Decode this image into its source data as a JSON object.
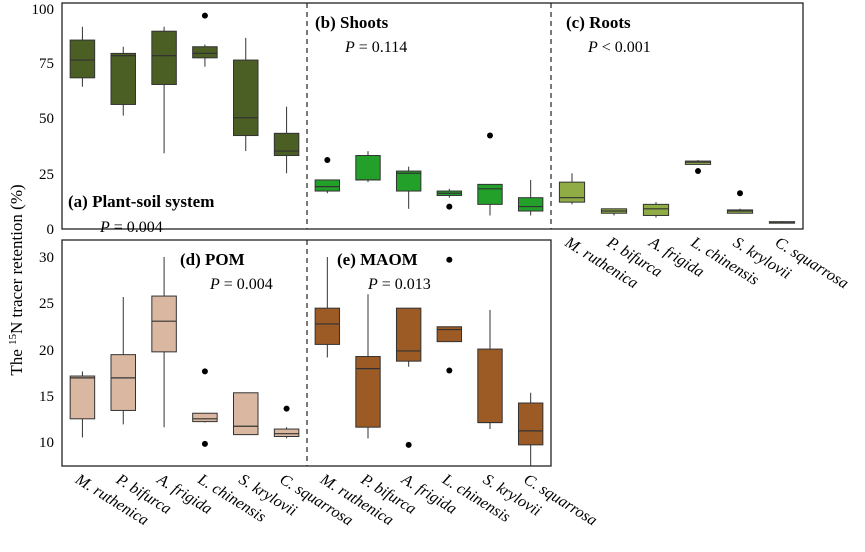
{
  "y_axis_label_prefix": "The ",
  "y_axis_label_sup": "15",
  "y_axis_label_rest": "N tracer retention (%)",
  "species": [
    "M. ruthenica",
    "P. bifurca",
    "A. frigida",
    "L. chinensis",
    "S. krylovii",
    "C. squarrosa"
  ],
  "colors": {
    "plant_soil": "#4b5e23",
    "shoots": "#22a02a",
    "roots": "#8fac45",
    "pom": "#d9b7a0",
    "maom": "#9c5a24",
    "outline": "#333333"
  },
  "chart_data": [
    {
      "type": "box",
      "id": "a",
      "panel": "top",
      "title": "(a) Plant-soil system",
      "p_label": "P",
      "p_value": " = 0.004",
      "ylim": [
        0,
        100
      ],
      "yticks": [
        0,
        25,
        50,
        75,
        100
      ],
      "categories": [
        "M. ruthenica",
        "P. bifurca",
        "A. frigida",
        "L. chinensis",
        "S. krylovii",
        "C. squarrosa"
      ],
      "boxes": [
        {
          "min": 65,
          "q1": 69,
          "median": 77,
          "q3": 86,
          "max": 92,
          "outliers": []
        },
        {
          "min": 52,
          "q1": 57,
          "median": 79,
          "q3": 80,
          "max": 83,
          "outliers": []
        },
        {
          "min": 35,
          "q1": 66,
          "median": 79,
          "q3": 90,
          "max": 92,
          "outliers": []
        },
        {
          "min": 74,
          "q1": 78,
          "median": 80,
          "q3": 83,
          "max": 84,
          "outliers": [
            97
          ]
        },
        {
          "min": 36,
          "q1": 43,
          "median": 51,
          "q3": 77,
          "max": 87,
          "outliers": []
        },
        {
          "min": 26,
          "q1": 34,
          "median": 36,
          "q3": 44,
          "max": 56,
          "outliers": []
        }
      ]
    },
    {
      "type": "box",
      "id": "b",
      "panel": "top",
      "title": "(b) Shoots",
      "p_label": "P",
      "p_value": " = 0.114",
      "ylim": [
        0,
        100
      ],
      "categories": [
        "M. ruthenica",
        "P. bifurca",
        "A. frigida",
        "L. chinensis",
        "S. krylovii",
        "C. squarrosa"
      ],
      "boxes": [
        {
          "min": 17,
          "q1": 18,
          "median": 20,
          "q3": 23,
          "max": 23,
          "outliers": [
            32
          ]
        },
        {
          "min": 22,
          "q1": 23,
          "median": 23,
          "q3": 34,
          "max": 36,
          "outliers": []
        },
        {
          "min": 10,
          "q1": 18,
          "median": 26,
          "q3": 27,
          "max": 29,
          "outliers": []
        },
        {
          "min": 15,
          "q1": 16,
          "median": 17,
          "q3": 18,
          "max": 19,
          "outliers": [
            11
          ]
        },
        {
          "min": 7,
          "q1": 12,
          "median": 19,
          "q3": 21,
          "max": 21,
          "outliers": [
            43
          ]
        },
        {
          "min": 7,
          "q1": 9,
          "median": 11,
          "q3": 15,
          "max": 23,
          "outliers": []
        }
      ]
    },
    {
      "type": "box",
      "id": "c",
      "panel": "top",
      "title": "(c) Roots",
      "p_label": "P",
      "p_value": " < 0.001",
      "ylim": [
        0,
        100
      ],
      "categories": [
        "M. ruthenica",
        "P. bifurca",
        "A. frigida",
        "L. chinensis",
        "S. krylovii",
        "C. squarrosa"
      ],
      "boxes": [
        {
          "min": 12,
          "q1": 13,
          "median": 15,
          "q3": 22,
          "max": 26,
          "outliers": []
        },
        {
          "min": 7,
          "q1": 8,
          "median": 9,
          "q3": 10,
          "max": 10,
          "outliers": []
        },
        {
          "min": 6,
          "q1": 7,
          "median": 10,
          "q3": 12,
          "max": 13,
          "outliers": []
        },
        {
          "min": 30,
          "q1": 30,
          "median": 31,
          "q3": 31.5,
          "max": 32,
          "outliers": [
            27
          ]
        },
        {
          "min": 8,
          "q1": 8,
          "median": 9,
          "q3": 9.5,
          "max": 10,
          "outliers": [
            17
          ]
        },
        {
          "min": 3.5,
          "q1": 3.8,
          "median": 4,
          "q3": 4.2,
          "max": 4.5,
          "outliers": []
        }
      ]
    },
    {
      "type": "box",
      "id": "d",
      "panel": "bottom",
      "title": "(d) POM",
      "p_label": "P",
      "p_value": " = 0.004",
      "ylim": [
        7.5,
        31
      ],
      "yticks": [
        10,
        15,
        20,
        25,
        30
      ],
      "categories": [
        "M. ruthenica",
        "P. bifurca",
        "A. frigida",
        "L. chinensis",
        "S. krylovii",
        "C. squarrosa"
      ],
      "boxes": [
        {
          "min": 10.6,
          "q1": 12.6,
          "median": 17,
          "q3": 17.2,
          "max": 17.7,
          "outliers": []
        },
        {
          "min": 12,
          "q1": 13.5,
          "median": 17,
          "q3": 19.5,
          "max": 25.7,
          "outliers": []
        },
        {
          "min": 11.7,
          "q1": 19.8,
          "median": 23.1,
          "q3": 25.8,
          "max": 30,
          "outliers": []
        },
        {
          "min": 12.2,
          "q1": 12.3,
          "median": 12.6,
          "q3": 13.2,
          "max": 13.2,
          "outliers": [
            17.7,
            9.9
          ]
        },
        {
          "min": 10.9,
          "q1": 10.9,
          "median": 11.8,
          "q3": 15.4,
          "max": 15.4,
          "outliers": []
        },
        {
          "min": 10.5,
          "q1": 10.7,
          "median": 11,
          "q3": 11.5,
          "max": 11.7,
          "outliers": [
            13.7
          ]
        }
      ]
    },
    {
      "type": "box",
      "id": "e",
      "panel": "bottom",
      "title": "(e) MAOM",
      "p_label": "P",
      "p_value": " = 0.013",
      "ylim": [
        7.5,
        31
      ],
      "categories": [
        "M. ruthenica",
        "P. bifurca",
        "A. frigida",
        "L. chinensis",
        "S. krylovii",
        "C. squarrosa"
      ],
      "boxes": [
        {
          "min": 19.2,
          "q1": 20.6,
          "median": 22.8,
          "q3": 24.5,
          "max": 30,
          "outliers": []
        },
        {
          "min": 10.5,
          "q1": 11.7,
          "median": 18,
          "q3": 19.3,
          "max": 26,
          "outliers": []
        },
        {
          "min": 18.2,
          "q1": 18.8,
          "median": 19.9,
          "q3": 24.5,
          "max": 24.5,
          "outliers": [
            9.8
          ]
        },
        {
          "min": 20.9,
          "q1": 20.9,
          "median": 22.2,
          "q3": 22.5,
          "max": 22.5,
          "outliers": [
            29.7,
            17.8
          ]
        },
        {
          "min": 11.5,
          "q1": 12.2,
          "median": 12.2,
          "q3": 20.1,
          "max": 24.3,
          "outliers": []
        },
        {
          "min": 7.5,
          "q1": 9.8,
          "median": 11.3,
          "q3": 14.3,
          "max": 15.4,
          "outliers": []
        }
      ]
    }
  ]
}
